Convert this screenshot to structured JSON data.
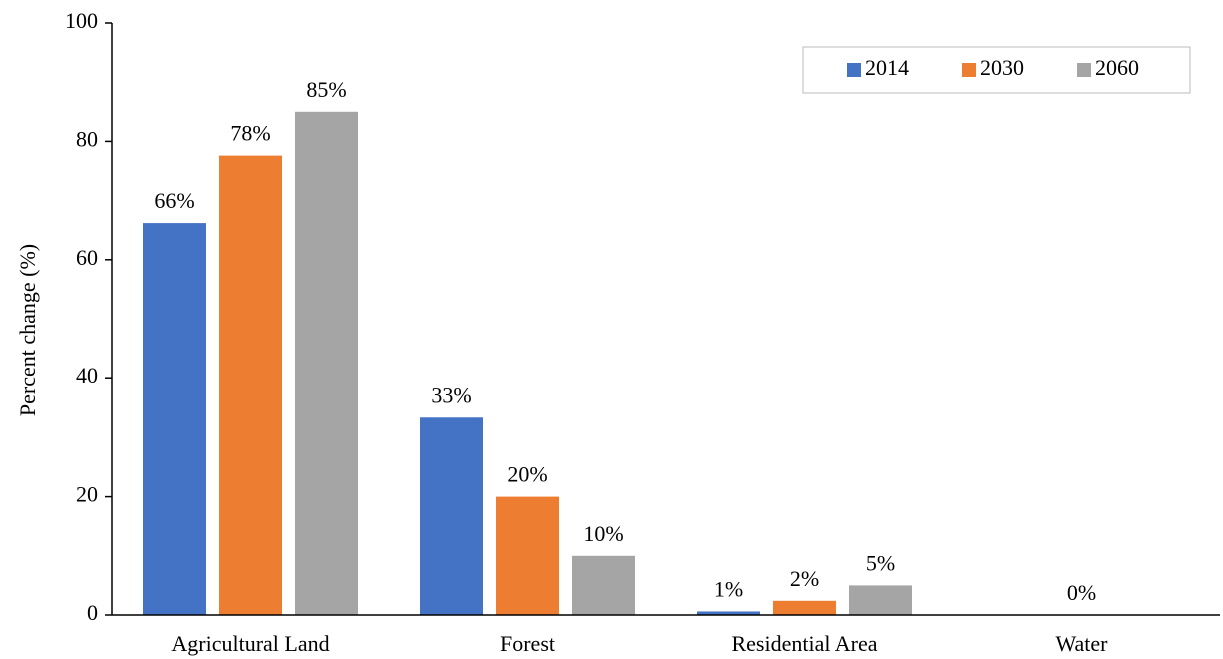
{
  "chart_data": {
    "type": "bar",
    "y_label": "Percent change (%)",
    "categories": [
      "Agricultural Land",
      "Forest",
      "Residential Area",
      "Water"
    ],
    "series": [
      {
        "name": "2014",
        "color": "#4472c4",
        "values": [
          66.2,
          33.4,
          0.6,
          0
        ],
        "value_labels": [
          "66%",
          "33%",
          "1%",
          null
        ]
      },
      {
        "name": "2030",
        "color": "#ed7d31",
        "values": [
          77.6,
          20.0,
          2.4,
          0
        ],
        "value_labels": [
          "78%",
          "20%",
          "2%",
          "0%"
        ]
      },
      {
        "name": "2060",
        "color": "#a5a5a5",
        "values": [
          85.0,
          10.0,
          5.0,
          0
        ],
        "value_labels": [
          "85%",
          "10%",
          "5%",
          null
        ]
      }
    ],
    "ylim": [
      0,
      100
    ],
    "yticks": [
      0,
      20,
      40,
      60,
      80,
      100
    ],
    "grid": false,
    "legend": "top-right"
  }
}
